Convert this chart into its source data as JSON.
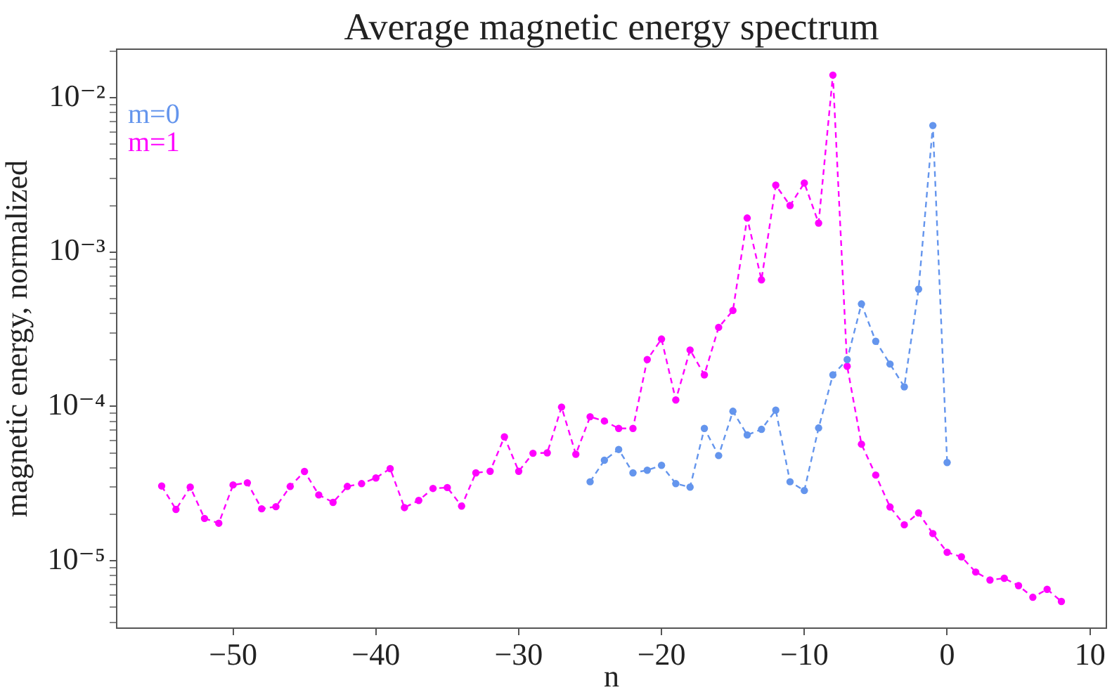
{
  "chart_data": {
    "type": "line",
    "title": "Average magnetic energy spectrum",
    "xlabel": "n",
    "ylabel": "magnetic energy, normalized",
    "log": "y",
    "grid": false,
    "legend": "top left",
    "marker": "circle",
    "line_style": "dashed",
    "xlim": [
      -58.15,
      11.15
    ],
    "ylim": [
      3.66e-06,
      0.0206
    ],
    "xticks": [
      {
        "value": -50,
        "label": "−50"
      },
      {
        "value": -40,
        "label": "−40"
      },
      {
        "value": -30,
        "label": "−30"
      },
      {
        "value": -20,
        "label": "−20"
      },
      {
        "value": -10,
        "label": "−10"
      },
      0,
      10
    ],
    "yticks": [
      {
        "value": 1e-05,
        "label": "10⁻⁵"
      },
      {
        "value": 0.0001,
        "label": "10⁻⁴"
      },
      {
        "value": 0.001,
        "label": "10⁻³"
      },
      {
        "value": 0.01,
        "label": "10⁻²"
      },
      {
        "value": 4e-06,
        "label": null
      },
      {
        "value": 5e-06,
        "label": null
      },
      {
        "value": 6e-06,
        "label": null
      },
      {
        "value": 7e-06,
        "label": null
      },
      {
        "value": 8e-06,
        "label": null
      },
      {
        "value": 9e-06,
        "label": null
      },
      {
        "value": 2e-05,
        "label": null
      },
      {
        "value": 3e-05,
        "label": null
      },
      {
        "value": 4e-05,
        "label": null
      },
      {
        "value": 5e-05,
        "label": null
      },
      {
        "value": 6e-05,
        "label": null
      },
      {
        "value": 7e-05,
        "label": null
      },
      {
        "value": 8e-05,
        "label": null
      },
      {
        "value": 9e-05,
        "label": null
      },
      {
        "value": 0.0002,
        "label": null
      },
      {
        "value": 0.0003,
        "label": null
      },
      {
        "value": 0.0004,
        "label": null
      },
      {
        "value": 0.0005,
        "label": null
      },
      {
        "value": 0.0006,
        "label": null
      },
      {
        "value": 0.0007,
        "label": null
      },
      {
        "value": 0.0008,
        "label": null
      },
      {
        "value": 0.0009,
        "label": null
      },
      {
        "value": 0.002,
        "label": null
      },
      {
        "value": 0.003,
        "label": null
      },
      {
        "value": 0.004,
        "label": null
      },
      {
        "value": 0.005,
        "label": null
      },
      {
        "value": 0.006,
        "label": null
      },
      {
        "value": 0.007,
        "label": null
      },
      {
        "value": 0.008,
        "label": null
      },
      {
        "value": 0.009,
        "label": null
      },
      {
        "value": 0.02,
        "label": null
      }
    ],
    "series": [
      {
        "name": "m=0",
        "color": "#6495ed",
        "x": [
          -25,
          -24,
          -23,
          -22,
          -21,
          -20,
          -19,
          -18,
          -17,
          -16,
          -15,
          -14,
          -13,
          -12,
          -11,
          -10,
          -9,
          -8,
          -7,
          -6,
          -5,
          -4,
          -3,
          -2,
          -1,
          0
        ],
        "values": [
          3.25e-05,
          4.48e-05,
          5.26e-05,
          3.71e-05,
          3.86e-05,
          4.15e-05,
          3.16e-05,
          3e-05,
          7.2e-05,
          4.8e-05,
          9.3e-05,
          6.53e-05,
          7.1e-05,
          9.45e-05,
          3.25e-05,
          2.85e-05,
          7.25e-05,
          0.00016,
          0.000201,
          0.000461,
          0.000264,
          0.000188,
          0.000134,
          0.000575,
          0.0066,
          4.33e-05
        ]
      },
      {
        "name": "m=1",
        "color": "#ff00ff",
        "x": [
          -55,
          -54,
          -53,
          -52,
          -51,
          -50,
          -49,
          -48,
          -47,
          -46,
          -45,
          -44,
          -43,
          -42,
          -41,
          -40,
          -39,
          -38,
          -37,
          -36,
          -35,
          -34,
          -33,
          -32,
          -31,
          -30,
          -29,
          -28,
          -27,
          -26,
          -25,
          -24,
          -23,
          -22,
          -21,
          -20,
          -19,
          -18,
          -17,
          -16,
          -15,
          -14,
          -13,
          -12,
          -11,
          -10,
          -9,
          -8,
          -7,
          -6,
          -5,
          -4,
          -3,
          -2,
          -1,
          0,
          1,
          2,
          3,
          4,
          5,
          6,
          7,
          8
        ],
        "values": [
          3.05e-05,
          2.15e-05,
          3e-05,
          1.88e-05,
          1.75e-05,
          3.1e-05,
          3.2e-05,
          2.17e-05,
          2.24e-05,
          3.03e-05,
          3.79e-05,
          2.67e-05,
          2.39e-05,
          3.03e-05,
          3.16e-05,
          3.44e-05,
          3.95e-05,
          2.21e-05,
          2.46e-05,
          2.94e-05,
          2.98e-05,
          2.26e-05,
          3.71e-05,
          3.8e-05,
          6.35e-05,
          3.8e-05,
          4.97e-05,
          5e-05,
          9.9e-05,
          4.9e-05,
          8.57e-05,
          8.04e-05,
          7.2e-05,
          7.2e-05,
          0.000201,
          0.000273,
          0.00011,
          0.000232,
          0.00016,
          0.000325,
          0.000418,
          0.00166,
          0.00066,
          0.00271,
          0.002,
          0.0028,
          0.00154,
          0.014,
          0.000182,
          5.69e-05,
          3.59e-05,
          2.23e-05,
          1.71e-05,
          2.04e-05,
          1.5e-05,
          1.135e-05,
          1.06e-05,
          8.45e-06,
          7.5e-06,
          7.7e-06,
          6.9e-06,
          5.8e-06,
          6.53e-06,
          5.45e-06
        ]
      }
    ]
  }
}
